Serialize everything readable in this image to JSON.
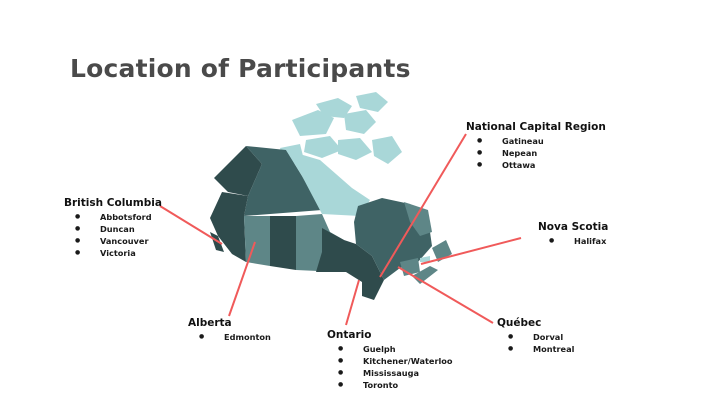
{
  "title": "Location of Participants",
  "colors": {
    "dark": "#2f4b4c",
    "mid": "#3f6365",
    "light": "#5e8687",
    "arctic": "#a9d7d8",
    "leader_line": "#f05a5a"
  },
  "regions": [
    {
      "name": "British Columbia",
      "cities": [
        "Abbotsford",
        "Duncan",
        "Vancouver",
        "Victoria"
      ]
    },
    {
      "name": "Alberta",
      "cities": [
        "Edmonton"
      ]
    },
    {
      "name": "Ontario",
      "cities": [
        "Guelph",
        "Kitchener/Waterloo",
        "Mississauga",
        "Toronto"
      ]
    },
    {
      "name": "National Capital Region",
      "cities": [
        "Gatineau",
        "Nepean",
        "Ottawa"
      ]
    },
    {
      "name": "Nova Scotia",
      "cities": [
        "Halifax"
      ]
    },
    {
      "name": "Québec",
      "cities": [
        "Dorval",
        "Montreal"
      ]
    }
  ]
}
